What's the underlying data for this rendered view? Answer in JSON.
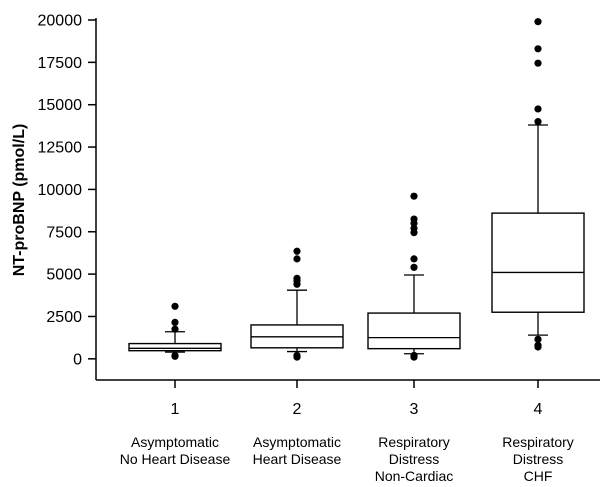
{
  "chart_data": {
    "type": "box",
    "ylabel": "NT-proBNP (pmol/L)",
    "xlabel": "",
    "ylim": [
      -1250,
      20000
    ],
    "yticks": [
      0,
      2500,
      5000,
      7500,
      10000,
      12500,
      15000,
      17500,
      20000
    ],
    "categories": [
      "1",
      "2",
      "3",
      "4"
    ],
    "group_labels": [
      [
        "Asymptomatic",
        "No Heart Disease"
      ],
      [
        "Asymptomatic",
        "Heart Disease"
      ],
      [
        "Respiratory",
        "Distress",
        "Non-Cardiac"
      ],
      [
        "Respiratory",
        "Distress",
        "CHF"
      ]
    ],
    "boxes": [
      {
        "category": "1",
        "whisker_low": 400,
        "q1": 480,
        "median": 620,
        "q3": 900,
        "whisker_high": 1600,
        "outliers": [
          3100,
          2150,
          1750,
          200,
          150
        ]
      },
      {
        "category": "2",
        "whisker_low": 430,
        "q1": 650,
        "median": 1300,
        "q3": 2000,
        "whisker_high": 4050,
        "outliers": [
          6350,
          5900,
          4750,
          4600,
          4400,
          200,
          100
        ]
      },
      {
        "category": "3",
        "whisker_low": 300,
        "q1": 600,
        "median": 1250,
        "q3": 2700,
        "whisker_high": 4950,
        "outliers": [
          9600,
          8250,
          8000,
          7700,
          7450,
          5900,
          5400,
          200,
          100
        ]
      },
      {
        "category": "4",
        "whisker_low": 1400,
        "q1": 2750,
        "median": 5100,
        "q3": 8600,
        "whisker_high": 13800,
        "outliers": [
          19900,
          18300,
          17450,
          14750,
          14000,
          1150,
          800,
          700
        ]
      }
    ]
  }
}
